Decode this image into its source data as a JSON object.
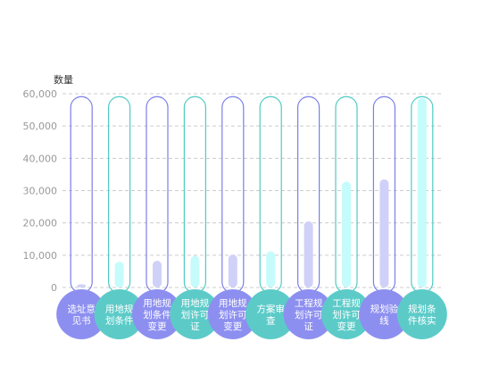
{
  "chart_data": {
    "type": "bar",
    "ylabel": "数量",
    "ylim": [
      0,
      60000
    ],
    "yticks": [
      0,
      10000,
      20000,
      30000,
      40000,
      50000,
      60000
    ],
    "ytick_labels": [
      "0",
      "10,000",
      "20,000",
      "30,000",
      "40,000",
      "50,000",
      "60,000"
    ],
    "grid": true,
    "categories": [
      [
        "选址意",
        "见书"
      ],
      [
        "用地规",
        "划条件"
      ],
      [
        "用地规",
        "划条件",
        "变更"
      ],
      [
        "用地规",
        "划许可",
        "证"
      ],
      [
        "用地规",
        "划许可",
        "变更"
      ],
      [
        "方案审",
        "查"
      ],
      [
        "工程规",
        "划许可",
        "证"
      ],
      [
        "工程规",
        "划许可",
        "变更"
      ],
      [
        "规划验",
        "线"
      ],
      [
        "规划条",
        "件核实"
      ]
    ],
    "values": [
      1000,
      8000,
      8300,
      9800,
      10200,
      11200,
      20500,
      32800,
      33500,
      58700
    ],
    "background_max": 58000,
    "colors": {
      "odd_outline": "#7b7fe8",
      "even_outline": "#4ecbc4",
      "odd_bar": "#d0d1f8",
      "even_bar": "#c6fbfb",
      "odd_circle": "#8d8ff0",
      "even_circle": "#5ccbc8"
    }
  }
}
